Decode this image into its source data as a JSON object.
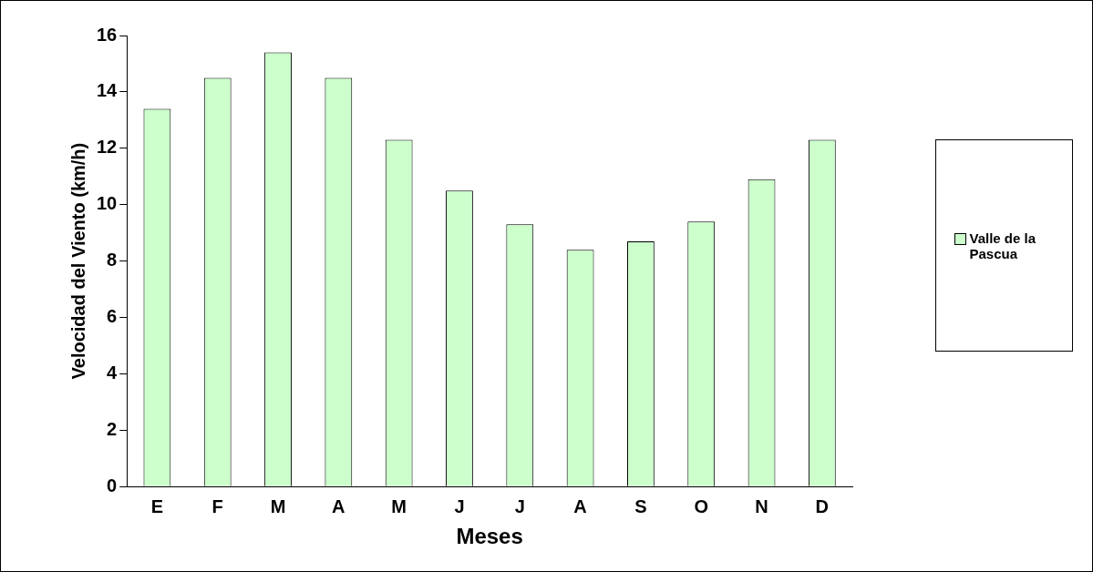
{
  "chart_data": {
    "type": "bar",
    "xlabel": "Meses",
    "ylabel": "Velocidad del Viento (km/h)",
    "categories": [
      "E",
      "F",
      "M",
      "A",
      "M",
      "J",
      "J",
      "A",
      "S",
      "O",
      "N",
      "D"
    ],
    "series": [
      {
        "name": "Valle de la Pascua",
        "color": "#ccffcc",
        "values": [
          13.4,
          14.5,
          15.4,
          14.5,
          12.3,
          10.5,
          9.3,
          8.4,
          8.7,
          9.4,
          10.9,
          12.3
        ]
      }
    ],
    "ylim": [
      0,
      16
    ],
    "yticks": [
      0,
      2,
      4,
      6,
      8,
      10,
      12,
      14,
      16
    ],
    "grid": false,
    "legend": "right"
  }
}
